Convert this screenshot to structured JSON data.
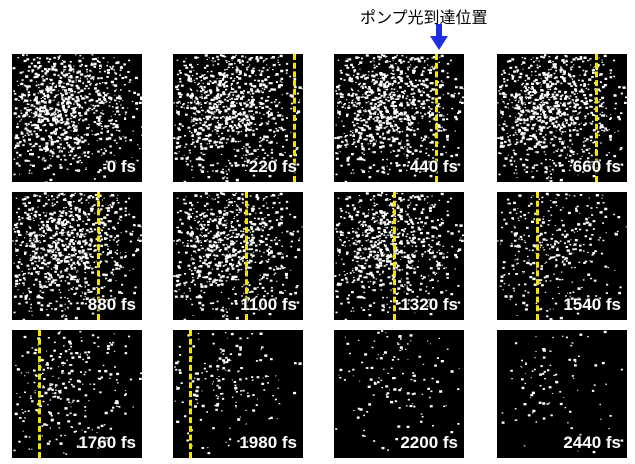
{
  "annotation": {
    "text": "ポンプ光到達位置",
    "arrow_color": "#1e2fe0"
  },
  "marker_color": "#f2e600",
  "panels": [
    {
      "label": "0 fs",
      "intensity": 1.0,
      "marker": null
    },
    {
      "label": "220 fs",
      "intensity": 1.0,
      "marker": 0.92
    },
    {
      "label": "440 fs",
      "intensity": 1.0,
      "marker": 0.78
    },
    {
      "label": "660 fs",
      "intensity": 1.0,
      "marker": 0.75
    },
    {
      "label": "880 fs",
      "intensity": 1.0,
      "marker": 0.65
    },
    {
      "label": "1100 fs",
      "intensity": 0.85,
      "marker": 0.55
    },
    {
      "label": "1320 fs",
      "intensity": 0.8,
      "marker": 0.45
    },
    {
      "label": "1540 fs",
      "intensity": 0.35,
      "marker": 0.3
    },
    {
      "label": "1760 fs",
      "intensity": 0.25,
      "marker": 0.2
    },
    {
      "label": "1980 fs",
      "intensity": 0.15,
      "marker": 0.12
    },
    {
      "label": "2200 fs",
      "intensity": 0.1,
      "marker": null
    },
    {
      "label": "2440 fs",
      "intensity": 0.06,
      "marker": null
    }
  ]
}
